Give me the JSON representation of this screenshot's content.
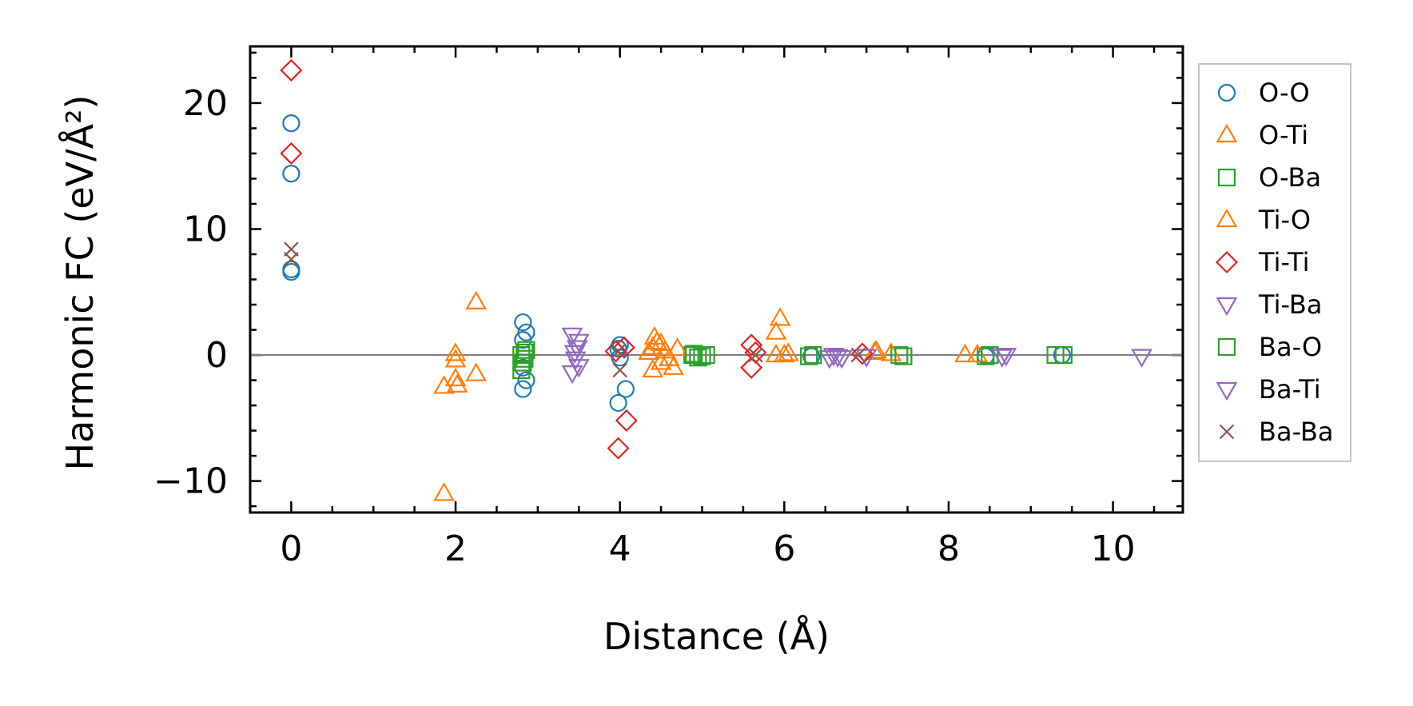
{
  "chart_data": {
    "type": "scatter",
    "title": "",
    "xlabel": "Distance (Å)",
    "ylabel": "Harmonic FC (eV/Å²)",
    "xlim": [
      -0.5,
      10.85
    ],
    "ylim": [
      -12.5,
      24.5
    ],
    "xticks": [
      0,
      2,
      4,
      6,
      8,
      10
    ],
    "xtick_labels": [
      "0",
      "2",
      "4",
      "6",
      "8",
      "10"
    ],
    "yticks": [
      -10,
      0,
      10,
      20
    ],
    "ytick_labels": [
      "−10",
      "0",
      "10",
      "20"
    ],
    "x_minor_step": 0.5,
    "y_minor_step": 2,
    "reference_line_y": 0,
    "grid": false,
    "legend_position": "outside-right",
    "series": [
      {
        "name": "O-O",
        "color": "#1f77b4",
        "marker": "circle",
        "points": [
          [
            0,
            18.4
          ],
          [
            0,
            14.4
          ],
          [
            0,
            6.8
          ],
          [
            0,
            6.6
          ],
          [
            2.82,
            2.6
          ],
          [
            2.82,
            1.2
          ],
          [
            2.86,
            1.8
          ],
          [
            2.82,
            -2.7
          ],
          [
            2.86,
            -2.0
          ],
          [
            2.82,
            -1.0
          ],
          [
            3.98,
            -3.8
          ],
          [
            4.07,
            -2.7
          ],
          [
            3.98,
            0.5
          ],
          [
            4.0,
            0.8
          ],
          [
            4.0,
            -0.2
          ],
          [
            6.33,
            -0.1
          ],
          [
            8.45,
            -0.1
          ],
          [
            9.38,
            0.0
          ]
        ]
      },
      {
        "name": "O-Ti",
        "color": "#ff7f0e",
        "marker": "triangle-up",
        "points": [
          [
            1.86,
            -11.0
          ],
          [
            1.86,
            -2.5
          ],
          [
            2.0,
            0.1
          ],
          [
            2.0,
            -0.4
          ],
          [
            2.0,
            -1.9
          ],
          [
            2.02,
            -2.4
          ],
          [
            2.25,
            4.2
          ],
          [
            2.25,
            -1.5
          ],
          [
            4.4,
            0.6
          ],
          [
            4.45,
            1.0
          ],
          [
            4.5,
            -0.6
          ],
          [
            4.55,
            0.3
          ],
          [
            4.65,
            -1.0
          ],
          [
            4.4,
            -1.2
          ],
          [
            5.95,
            2.9
          ],
          [
            5.9,
            1.8
          ],
          [
            6.0,
            0.0
          ],
          [
            7.12,
            0.3
          ],
          [
            8.2,
            0.0
          ]
        ]
      },
      {
        "name": "O-Ba",
        "color": "#2ca02c",
        "marker": "square",
        "points": [
          [
            2.8,
            0.0
          ],
          [
            2.82,
            -0.6
          ],
          [
            2.86,
            0.4
          ],
          [
            2.8,
            -1.2
          ],
          [
            4.88,
            0.0
          ],
          [
            4.95,
            -0.2
          ],
          [
            5.05,
            0.0
          ],
          [
            6.3,
            -0.1
          ],
          [
            7.4,
            0.0
          ],
          [
            8.45,
            -0.1
          ],
          [
            9.3,
            0.0
          ]
        ]
      },
      {
        "name": "Ti-O",
        "color": "#ff7f0e",
        "marker": "triangle-up",
        "points": [
          [
            4.35,
            0.2
          ],
          [
            4.42,
            1.4
          ],
          [
            4.5,
            0.9
          ],
          [
            4.6,
            -0.3
          ],
          [
            4.7,
            0.5
          ],
          [
            5.9,
            0.0
          ],
          [
            6.05,
            0.1
          ],
          [
            7.1,
            0.2
          ],
          [
            7.3,
            0.1
          ],
          [
            8.35,
            0.0
          ]
        ]
      },
      {
        "name": "Ti-Ti",
        "color": "#d62728",
        "marker": "diamond",
        "points": [
          [
            0,
            22.6
          ],
          [
            0,
            16.0
          ],
          [
            3.98,
            -7.4
          ],
          [
            4.08,
            -5.2
          ],
          [
            3.95,
            0.3
          ],
          [
            4.05,
            0.6
          ],
          [
            5.6,
            0.8
          ],
          [
            5.6,
            -1.0
          ],
          [
            5.65,
            0.2
          ],
          [
            6.95,
            0.1
          ]
        ]
      },
      {
        "name": "Ti-Ba",
        "color": "#9467bd",
        "marker": "triangle-down",
        "points": [
          [
            3.42,
            1.6
          ],
          [
            3.5,
            1.1
          ],
          [
            3.45,
            0.2
          ],
          [
            3.42,
            -1.4
          ],
          [
            3.5,
            -0.9
          ],
          [
            6.55,
            -0.2
          ],
          [
            6.65,
            -0.1
          ],
          [
            7.0,
            -0.1
          ],
          [
            8.7,
            0.0
          ],
          [
            10.35,
            -0.1
          ]
        ]
      },
      {
        "name": "Ba-O",
        "color": "#2ca02c",
        "marker": "square",
        "points": [
          [
            2.84,
            0.2
          ],
          [
            2.84,
            -0.3
          ],
          [
            4.9,
            0.1
          ],
          [
            5.0,
            -0.1
          ],
          [
            6.35,
            0.0
          ],
          [
            7.45,
            -0.1
          ],
          [
            8.5,
            0.0
          ],
          [
            9.4,
            0.0
          ]
        ]
      },
      {
        "name": "Ba-Ti",
        "color": "#9467bd",
        "marker": "triangle-down",
        "points": [
          [
            3.48,
            0.6
          ],
          [
            3.46,
            -0.3
          ],
          [
            6.6,
            0.0
          ],
          [
            6.7,
            -0.2
          ],
          [
            8.65,
            -0.1
          ]
        ]
      },
      {
        "name": "Ba-Ba",
        "color": "#8c564b",
        "marker": "x",
        "points": [
          [
            0,
            8.4
          ],
          [
            0,
            7.6
          ],
          [
            3.98,
            0.3
          ],
          [
            4.0,
            -1.2
          ],
          [
            5.65,
            0.0
          ],
          [
            6.9,
            0.0
          ]
        ]
      }
    ]
  }
}
